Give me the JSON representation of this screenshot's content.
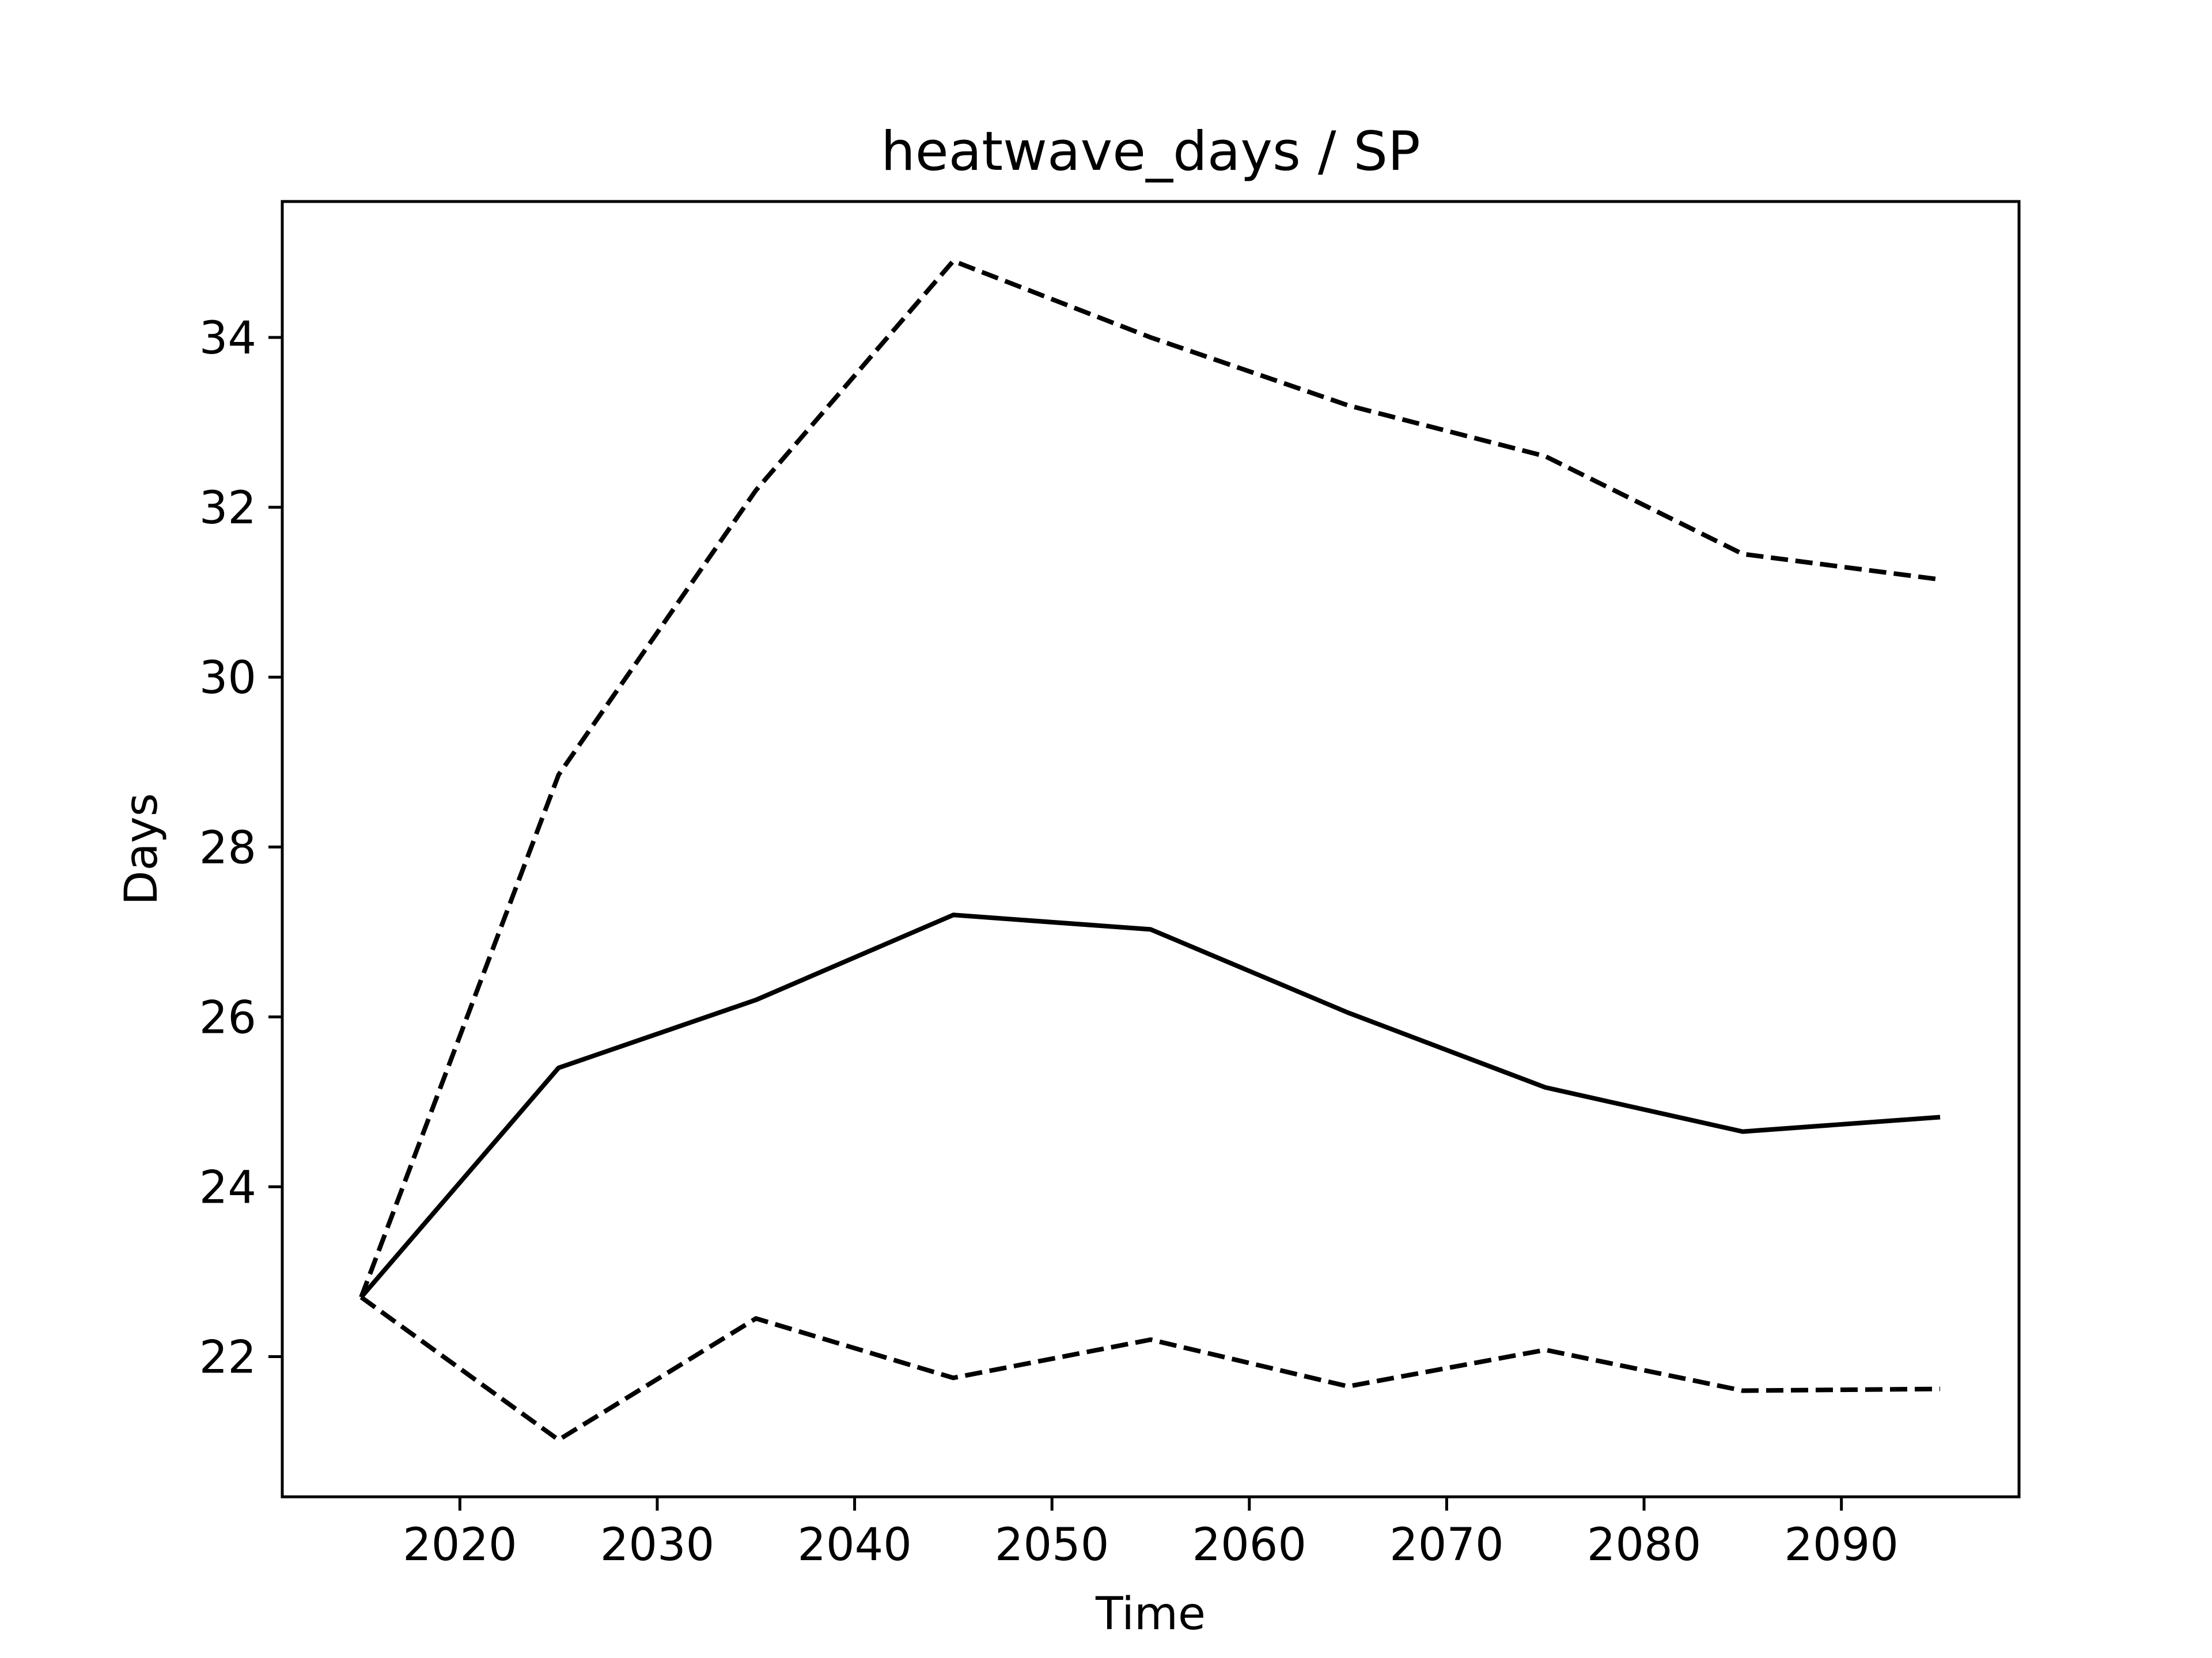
{
  "chart_data": {
    "type": "line",
    "title": "heatwave_days / SP",
    "xlabel": "Time",
    "ylabel": "Days",
    "xlim": [
      2011,
      2099
    ],
    "ylim": [
      20.35,
      35.6
    ],
    "xticks": [
      2020,
      2030,
      2040,
      2050,
      2060,
      2070,
      2080,
      2090
    ],
    "yticks": [
      22,
      24,
      26,
      28,
      30,
      32,
      34
    ],
    "grid": false,
    "x": [
      2015,
      2025,
      2035,
      2045,
      2055,
      2065,
      2075,
      2085,
      2095
    ],
    "series": [
      {
        "style": "dashed",
        "color": "#000000",
        "values": [
          22.7,
          28.85,
          32.2,
          34.9,
          34.0,
          33.2,
          32.6,
          31.45,
          31.15
        ]
      },
      {
        "style": "solid",
        "color": "#000000",
        "values": [
          22.7,
          25.4,
          26.2,
          27.2,
          27.03,
          26.05,
          25.17,
          24.65,
          24.82
        ]
      },
      {
        "style": "dashed",
        "color": "#000000",
        "values": [
          22.7,
          21.02,
          22.45,
          21.75,
          22.2,
          21.65,
          22.08,
          21.6,
          21.62
        ]
      }
    ]
  }
}
